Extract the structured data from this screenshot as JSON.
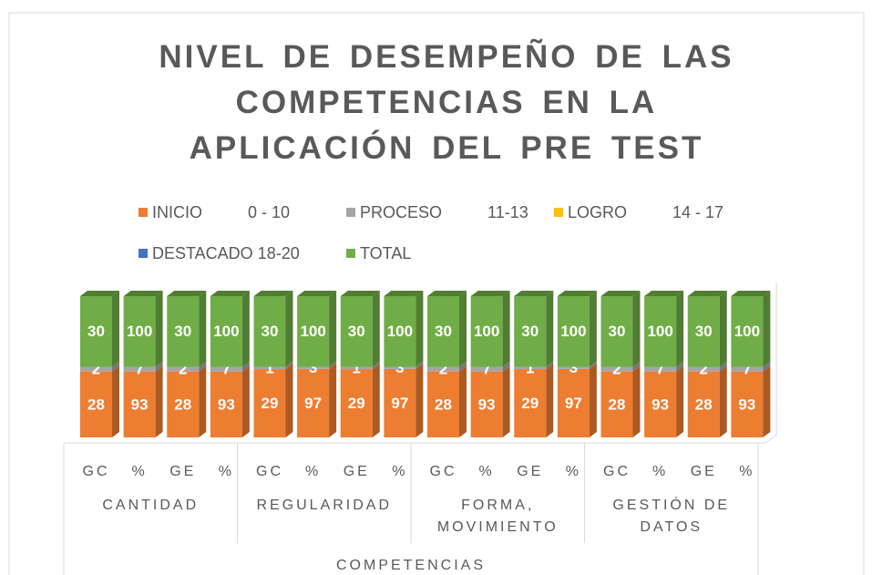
{
  "chart_data": {
    "type": "bar",
    "stacking": "percent",
    "title": "NIVEL DE DESEMPEÑO DE LAS COMPETENCIAS EN LA APLICACIÓN DEL PRE TEST",
    "categories": [
      "GC",
      "%",
      "GE",
      "%",
      "GC",
      "%",
      "GE",
      "%",
      "GC",
      "%",
      "GE",
      "%",
      "GC",
      "%",
      "GE",
      "%"
    ],
    "category_groups": [
      "CANTIDAD",
      "REGULARIDAD",
      "FORMA, MOVIMIENTO",
      "GESTIÓN DE DATOS"
    ],
    "x_label": "COMPETENCIAS",
    "series": [
      {
        "name": "INICIO          0 - 10",
        "color": "#ED7D31",
        "values": [
          28,
          93,
          28,
          93,
          29,
          97,
          29,
          97,
          28,
          93,
          29,
          97,
          28,
          93,
          28,
          93
        ]
      },
      {
        "name": "PROCESO          11-13",
        "color": "#A5A5A5",
        "values": [
          2,
          7,
          2,
          7,
          1,
          3,
          1,
          3,
          2,
          7,
          1,
          3,
          2,
          7,
          2,
          7
        ]
      },
      {
        "name": "LOGRO          14 - 17",
        "color": "#FFC000",
        "values": [
          0,
          0,
          0,
          0,
          0,
          0,
          0,
          0,
          0,
          0,
          0,
          0,
          0,
          0,
          0,
          0
        ]
      },
      {
        "name": "DESTACADO 18-20",
        "color": "#4472C4",
        "values": [
          0,
          0,
          0,
          0,
          0,
          0,
          0,
          0,
          0,
          0,
          0,
          0,
          0,
          0,
          0,
          0
        ]
      },
      {
        "name": "TOTAL",
        "color": "#70AD47",
        "values": [
          30,
          100,
          30,
          100,
          30,
          100,
          30,
          100,
          30,
          100,
          30,
          100,
          30,
          100,
          30,
          100
        ]
      }
    ]
  }
}
